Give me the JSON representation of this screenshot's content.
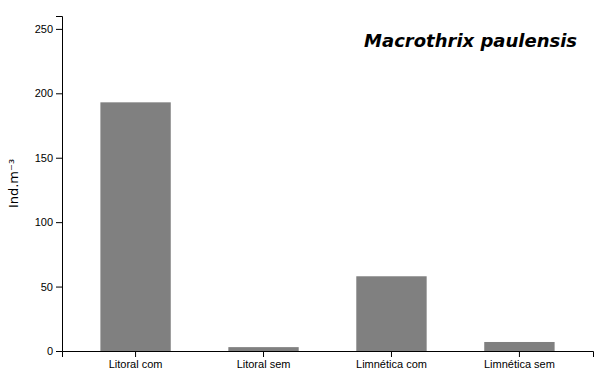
{
  "chart_data": {
    "type": "bar",
    "title": "Macrothrix paulensis",
    "ylabel": "Ind.m⁻³",
    "categories": [
      "Litoral com",
      "Litoral sem",
      "Limnética com",
      "Limnética sem"
    ],
    "values": [
      193,
      3,
      58,
      7
    ],
    "color": "#808080",
    "ylim": [
      0,
      260
    ],
    "yticks": [
      0,
      50,
      100,
      150,
      200,
      250
    ],
    "grid": false
  }
}
